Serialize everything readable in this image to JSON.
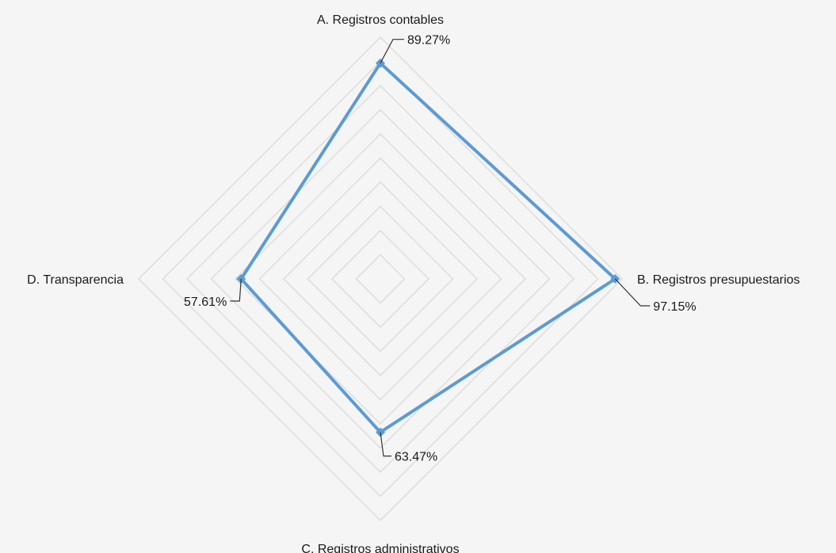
{
  "chart_data": {
    "type": "radar",
    "categories": [
      "A. Registros contables",
      "B. Registros presupuestarios",
      "C. Registros administrativos",
      "D. Transparencia"
    ],
    "series": [
      {
        "values": [
          89.27,
          97.15,
          63.47,
          57.61
        ],
        "data_labels": [
          "89.27%",
          "97.15%",
          "63.47%",
          "57.61%"
        ],
        "color": "#5b9bd5"
      }
    ],
    "rlim": [
      0,
      100
    ],
    "grid_rings": 10,
    "grid_color": "#d9d9d9",
    "legend": "none",
    "background": "#f5f5f5"
  }
}
